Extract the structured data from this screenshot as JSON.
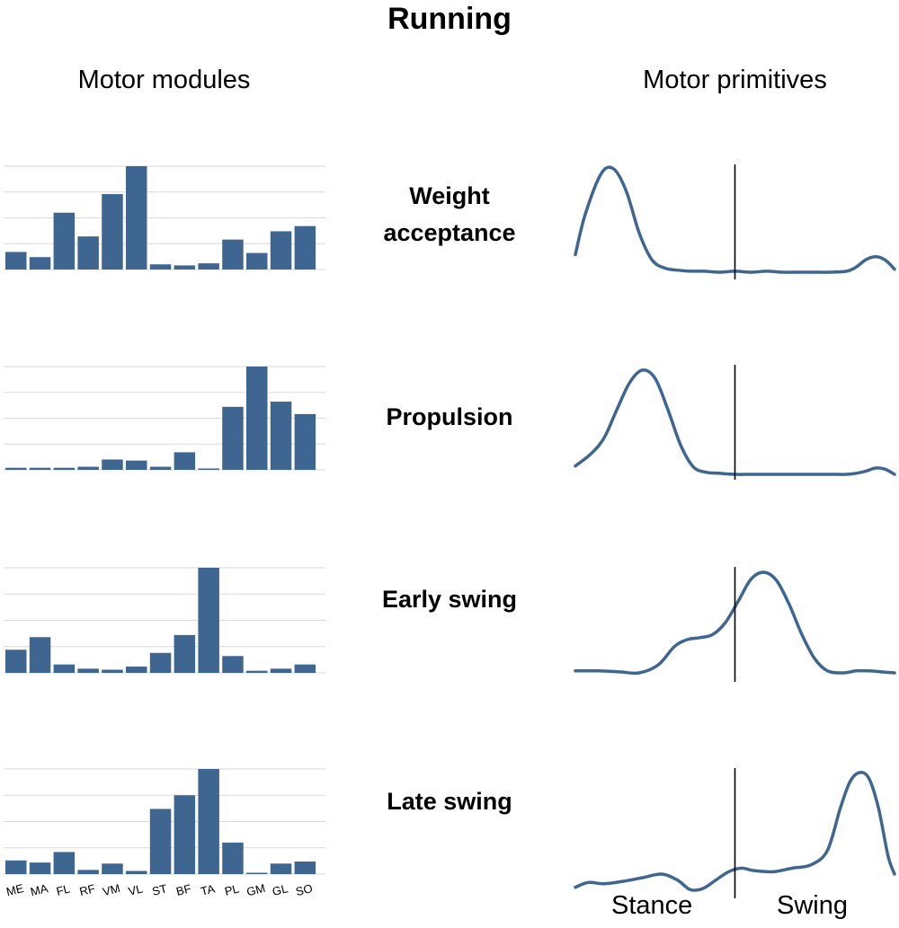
{
  "header": {
    "title": "Running",
    "left_column": "Motor modules",
    "right_column": "Motor primitives"
  },
  "phase_labels": {
    "stance": "Stance",
    "swing": "Swing"
  },
  "bar_color": "#3f6690",
  "line_color": "#3f6690",
  "chart_data": [
    {
      "type": "bar",
      "title": "Weight acceptance",
      "categories": [
        "ME",
        "MA",
        "FL",
        "RF",
        "VM",
        "VL",
        "ST",
        "BF",
        "TA",
        "PL",
        "GM",
        "GL",
        "SO"
      ],
      "values": [
        0.17,
        0.12,
        0.55,
        0.32,
        0.73,
        1.0,
        0.05,
        0.04,
        0.06,
        0.29,
        0.16,
        0.37,
        0.42
      ],
      "ylim": [
        0,
        1
      ],
      "grid": true
    },
    {
      "type": "line",
      "title": "Weight acceptance",
      "x": [
        0,
        3,
        8,
        12,
        16,
        20,
        24,
        28,
        32,
        36,
        40,
        45,
        50,
        55,
        60,
        65,
        70,
        75,
        80,
        85,
        88,
        91,
        94,
        97,
        100
      ],
      "y": [
        0.17,
        0.55,
        0.95,
        1.0,
        0.78,
        0.38,
        0.12,
        0.04,
        0.02,
        0.01,
        0.01,
        0.0,
        0.01,
        0.0,
        0.01,
        0.0,
        0.0,
        0.0,
        0.0,
        0.01,
        0.05,
        0.12,
        0.15,
        0.12,
        0.03
      ],
      "stance_swing_boundary": 50,
      "xlim": [
        0,
        100
      ],
      "ylim": [
        0,
        1
      ]
    },
    {
      "type": "bar",
      "title": "Propulsion",
      "categories": [
        "ME",
        "MA",
        "FL",
        "RF",
        "VM",
        "VL",
        "ST",
        "BF",
        "TA",
        "PL",
        "GM",
        "GL",
        "SO"
      ],
      "values": [
        0.02,
        0.02,
        0.02,
        0.03,
        0.1,
        0.09,
        0.03,
        0.17,
        0.01,
        0.61,
        1.0,
        0.66,
        0.54
      ],
      "ylim": [
        0,
        1
      ],
      "grid": true
    },
    {
      "type": "line",
      "title": "Propulsion",
      "x": [
        0,
        5,
        9,
        13,
        17,
        21,
        25,
        29,
        33,
        37,
        41,
        45,
        50,
        55,
        60,
        65,
        70,
        75,
        80,
        85,
        88,
        91,
        94,
        97,
        100
      ],
      "y": [
        0.08,
        0.2,
        0.35,
        0.62,
        0.88,
        1.0,
        0.92,
        0.62,
        0.28,
        0.07,
        0.02,
        0.01,
        0.0,
        0.0,
        0.0,
        0.0,
        0.0,
        0.0,
        0.0,
        0.0,
        0.01,
        0.03,
        0.06,
        0.05,
        0.0
      ],
      "stance_swing_boundary": 50,
      "xlim": [
        0,
        100
      ],
      "ylim": [
        0,
        1
      ]
    },
    {
      "type": "bar",
      "title": "Early swing",
      "categories": [
        "ME",
        "MA",
        "FL",
        "RF",
        "VM",
        "VL",
        "ST",
        "BF",
        "TA",
        "PL",
        "GM",
        "GL",
        "SO"
      ],
      "values": [
        0.22,
        0.34,
        0.08,
        0.04,
        0.03,
        0.06,
        0.19,
        0.36,
        1.0,
        0.16,
        0.02,
        0.04,
        0.08
      ],
      "ylim": [
        0,
        1
      ],
      "grid": true
    },
    {
      "type": "line",
      "title": "Early swing",
      "x": [
        0,
        7,
        14,
        20,
        26,
        31,
        35,
        39,
        43,
        47,
        51,
        55,
        59,
        63,
        67,
        71,
        75,
        79,
        84,
        88,
        92,
        96,
        100
      ],
      "y": [
        0.02,
        0.02,
        0.01,
        0.0,
        0.08,
        0.26,
        0.33,
        0.35,
        0.38,
        0.5,
        0.71,
        0.93,
        1.0,
        0.92,
        0.68,
        0.38,
        0.14,
        0.02,
        0.0,
        0.02,
        0.02,
        0.01,
        0.0
      ],
      "stance_swing_boundary": 50,
      "xlim": [
        0,
        100
      ],
      "ylim": [
        0,
        1
      ]
    },
    {
      "type": "bar",
      "title": "Late swing",
      "categories": [
        "ME",
        "MA",
        "FL",
        "RF",
        "VM",
        "VL",
        "ST",
        "BF",
        "TA",
        "PL",
        "GM",
        "GL",
        "SO"
      ],
      "values": [
        0.13,
        0.11,
        0.21,
        0.04,
        0.1,
        0.03,
        0.62,
        0.75,
        1.0,
        0.3,
        0.01,
        0.1,
        0.12
      ],
      "ylim": [
        0,
        1
      ],
      "grid": true
    },
    {
      "type": "line",
      "title": "Late swing",
      "x": [
        0,
        4,
        9,
        15,
        21,
        27,
        32,
        36,
        40,
        44,
        48,
        52,
        56,
        62,
        68,
        74,
        79,
        83,
        86,
        89,
        92,
        95,
        98,
        100
      ],
      "y": [
        0.04,
        0.08,
        0.07,
        0.09,
        0.12,
        0.15,
        0.1,
        0.02,
        0.03,
        0.1,
        0.17,
        0.2,
        0.18,
        0.17,
        0.2,
        0.23,
        0.35,
        0.7,
        0.92,
        1.0,
        0.95,
        0.7,
        0.3,
        0.15
      ],
      "stance_swing_boundary": 50,
      "xlim": [
        0,
        100
      ],
      "ylim": [
        0,
        1
      ]
    }
  ]
}
